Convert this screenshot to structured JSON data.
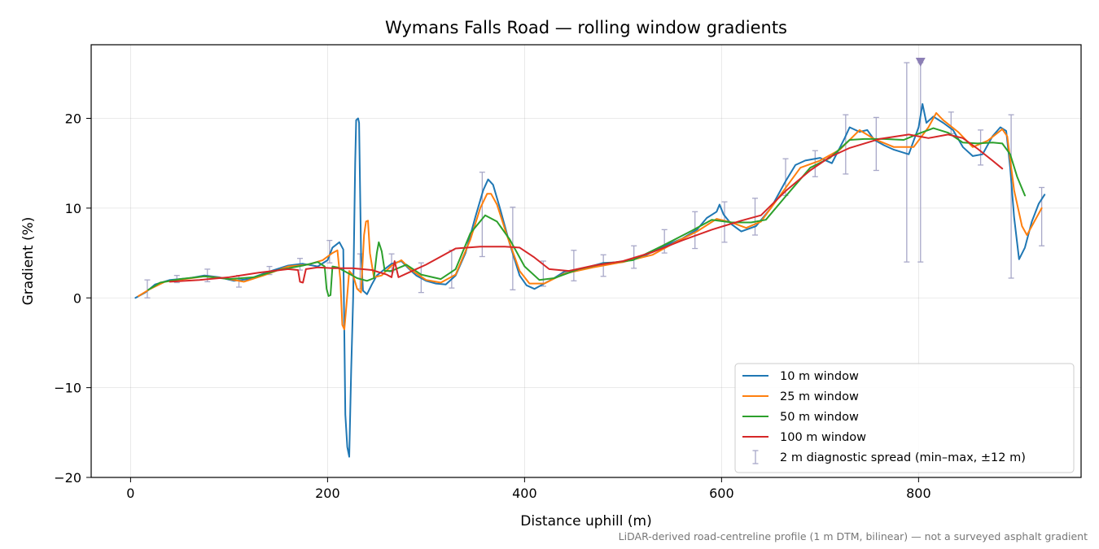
{
  "chart_data": {
    "type": "line",
    "title": "Wymans Falls Road — rolling window gradients",
    "xlabel": "Distance uphill (m)",
    "ylabel": "Gradient (%)",
    "xlim": [
      -40,
      965
    ],
    "ylim": [
      -20,
      28.2
    ],
    "xticks": [
      0,
      200,
      400,
      600,
      800
    ],
    "yticks": [
      -20,
      -10,
      0,
      10,
      20
    ],
    "xtick_labels": [
      "0",
      "200",
      "400",
      "600",
      "800"
    ],
    "ytick_labels": [
      "−20",
      "−10",
      "0",
      "10",
      "20"
    ],
    "grid": true,
    "legend_position": "lower-right",
    "footnote": "LiDAR-derived road-centreline profile (1 m DTM, bilinear) — not a surveyed asphalt gradient",
    "marker": {
      "x": 802,
      "y": 26.3,
      "shape": "triangle-down",
      "color": "#8c7fb5"
    },
    "series": [
      {
        "name": "10 m window",
        "color": "#1f77b4",
        "points": [
          [
            5,
            0
          ],
          [
            15,
            0.6
          ],
          [
            25,
            1.5
          ],
          [
            40,
            2
          ],
          [
            60,
            2.2
          ],
          [
            75,
            2.5
          ],
          [
            90,
            2.3
          ],
          [
            105,
            1.9
          ],
          [
            120,
            2.1
          ],
          [
            140,
            2.9
          ],
          [
            160,
            3.6
          ],
          [
            175,
            3.8
          ],
          [
            190,
            3.5
          ],
          [
            200,
            4.2
          ],
          [
            205,
            5.6
          ],
          [
            212,
            6.2
          ],
          [
            216,
            5.4
          ],
          [
            218,
            -13
          ],
          [
            220,
            -16.6
          ],
          [
            222,
            -17.7
          ],
          [
            224,
            -8
          ],
          [
            226,
            0
          ],
          [
            228,
            15
          ],
          [
            229,
            19.8
          ],
          [
            231,
            20
          ],
          [
            232,
            19.5
          ],
          [
            234,
            5
          ],
          [
            236,
            0.8
          ],
          [
            240,
            0.4
          ],
          [
            245,
            1.5
          ],
          [
            250,
            2.5
          ],
          [
            258,
            3.2
          ],
          [
            265,
            3.8
          ],
          [
            275,
            4.1
          ],
          [
            282,
            3.3
          ],
          [
            290,
            2.5
          ],
          [
            300,
            1.9
          ],
          [
            310,
            1.6
          ],
          [
            320,
            1.5
          ],
          [
            330,
            2.5
          ],
          [
            340,
            5
          ],
          [
            350,
            9
          ],
          [
            358,
            12
          ],
          [
            363,
            13.2
          ],
          [
            368,
            12.6
          ],
          [
            375,
            10
          ],
          [
            385,
            6
          ],
          [
            395,
            2.5
          ],
          [
            402,
            1.4
          ],
          [
            410,
            1
          ],
          [
            420,
            1.6
          ],
          [
            430,
            2.2
          ],
          [
            440,
            2.9
          ],
          [
            460,
            3.3
          ],
          [
            480,
            3.9
          ],
          [
            500,
            4
          ],
          [
            520,
            4.6
          ],
          [
            540,
            5.7
          ],
          [
            560,
            6.6
          ],
          [
            575,
            7.6
          ],
          [
            585,
            8.9
          ],
          [
            595,
            9.6
          ],
          [
            598,
            10.4
          ],
          [
            602,
            9.3
          ],
          [
            610,
            8.2
          ],
          [
            620,
            7.4
          ],
          [
            635,
            8
          ],
          [
            650,
            10
          ],
          [
            665,
            13
          ],
          [
            675,
            14.8
          ],
          [
            685,
            15.3
          ],
          [
            700,
            15.6
          ],
          [
            712,
            15
          ],
          [
            725,
            17.8
          ],
          [
            730,
            19
          ],
          [
            740,
            18.5
          ],
          [
            748,
            18.7
          ],
          [
            755,
            17.6
          ],
          [
            765,
            17
          ],
          [
            775,
            16.5
          ],
          [
            790,
            16
          ],
          [
            795,
            17.5
          ],
          [
            800,
            19
          ],
          [
            804,
            21.6
          ],
          [
            808,
            19.5
          ],
          [
            815,
            20.2
          ],
          [
            825,
            19.5
          ],
          [
            835,
            18.7
          ],
          [
            845,
            16.8
          ],
          [
            855,
            15.8
          ],
          [
            865,
            16
          ],
          [
            875,
            18
          ],
          [
            883,
            19
          ],
          [
            889,
            18.6
          ],
          [
            893,
            14.5
          ],
          [
            897,
            9
          ],
          [
            902,
            4.3
          ],
          [
            908,
            5.6
          ],
          [
            915,
            8.5
          ],
          [
            922,
            10.5
          ],
          [
            928,
            11.5
          ]
        ]
      },
      {
        "name": "25 m window",
        "color": "#ff7f0e",
        "points": [
          [
            8,
            0.2
          ],
          [
            20,
            1
          ],
          [
            35,
            1.8
          ],
          [
            55,
            2.1
          ],
          [
            75,
            2.4
          ],
          [
            95,
            2.2
          ],
          [
            115,
            1.8
          ],
          [
            135,
            2.5
          ],
          [
            160,
            3.5
          ],
          [
            180,
            3.7
          ],
          [
            195,
            4.2
          ],
          [
            205,
            5
          ],
          [
            210,
            5.3
          ],
          [
            213,
            2
          ],
          [
            215,
            -3
          ],
          [
            217,
            -3.5
          ],
          [
            219,
            -1
          ],
          [
            222,
            3
          ],
          [
            226,
            2.5
          ],
          [
            230,
            1
          ],
          [
            234,
            0.6
          ],
          [
            237,
            7
          ],
          [
            239,
            8.5
          ],
          [
            241,
            8.6
          ],
          [
            243,
            5
          ],
          [
            247,
            2.3
          ],
          [
            255,
            2.5
          ],
          [
            265,
            3.6
          ],
          [
            275,
            4.2
          ],
          [
            285,
            3.1
          ],
          [
            300,
            2
          ],
          [
            315,
            1.7
          ],
          [
            330,
            2.6
          ],
          [
            345,
            6.5
          ],
          [
            355,
            10
          ],
          [
            362,
            11.6
          ],
          [
            366,
            11.6
          ],
          [
            372,
            10.4
          ],
          [
            382,
            7
          ],
          [
            395,
            3
          ],
          [
            405,
            1.6
          ],
          [
            420,
            1.6
          ],
          [
            440,
            2.7
          ],
          [
            470,
            3.4
          ],
          [
            500,
            4
          ],
          [
            530,
            4.8
          ],
          [
            555,
            6.3
          ],
          [
            575,
            7.4
          ],
          [
            595,
            8.8
          ],
          [
            610,
            8.4
          ],
          [
            625,
            7.8
          ],
          [
            640,
            8.5
          ],
          [
            660,
            11.5
          ],
          [
            680,
            14.5
          ],
          [
            700,
            15.3
          ],
          [
            720,
            16.5
          ],
          [
            740,
            18.7
          ],
          [
            755,
            17.7
          ],
          [
            775,
            16.8
          ],
          [
            795,
            16.8
          ],
          [
            810,
            19
          ],
          [
            818,
            20.6
          ],
          [
            825,
            19.8
          ],
          [
            840,
            18.5
          ],
          [
            855,
            16.8
          ],
          [
            870,
            17.5
          ],
          [
            885,
            18.8
          ],
          [
            890,
            18
          ],
          [
            897,
            12
          ],
          [
            905,
            8
          ],
          [
            910,
            7
          ],
          [
            915,
            8
          ],
          [
            925,
            10
          ]
        ]
      },
      {
        "name": "50 m window",
        "color": "#2ca02c",
        "points": [
          [
            18,
            0.9
          ],
          [
            30,
            1.7
          ],
          [
            50,
            2.1
          ],
          [
            75,
            2.4
          ],
          [
            100,
            2.1
          ],
          [
            125,
            2.3
          ],
          [
            150,
            3.1
          ],
          [
            175,
            3.6
          ],
          [
            190,
            4
          ],
          [
            197,
            3.5
          ],
          [
            199,
            1
          ],
          [
            201,
            0.2
          ],
          [
            203,
            0.3
          ],
          [
            205,
            3.5
          ],
          [
            210,
            3.4
          ],
          [
            220,
            2.8
          ],
          [
            230,
            2.2
          ],
          [
            240,
            1.9
          ],
          [
            247,
            2.2
          ],
          [
            250,
            5
          ],
          [
            252,
            6.2
          ],
          [
            255,
            5.2
          ],
          [
            258,
            3
          ],
          [
            265,
            3
          ],
          [
            280,
            3.7
          ],
          [
            295,
            2.6
          ],
          [
            315,
            2.1
          ],
          [
            330,
            3.2
          ],
          [
            345,
            7.2
          ],
          [
            360,
            9.2
          ],
          [
            372,
            8.5
          ],
          [
            385,
            6.5
          ],
          [
            400,
            3.5
          ],
          [
            415,
            2
          ],
          [
            430,
            2.2
          ],
          [
            455,
            3.2
          ],
          [
            480,
            3.8
          ],
          [
            510,
            4.2
          ],
          [
            540,
            5.8
          ],
          [
            570,
            7.5
          ],
          [
            590,
            8.7
          ],
          [
            610,
            8.4
          ],
          [
            630,
            8.4
          ],
          [
            645,
            8.7
          ],
          [
            665,
            11.3
          ],
          [
            690,
            14.5
          ],
          [
            710,
            15.6
          ],
          [
            730,
            17.6
          ],
          [
            745,
            17.7
          ],
          [
            765,
            17.7
          ],
          [
            785,
            17.6
          ],
          [
            800,
            18.3
          ],
          [
            815,
            18.9
          ],
          [
            830,
            18.4
          ],
          [
            845,
            17.3
          ],
          [
            860,
            17.2
          ],
          [
            875,
            17.3
          ],
          [
            885,
            17.2
          ],
          [
            893,
            16
          ],
          [
            900,
            13.5
          ],
          [
            908,
            11.4
          ]
        ]
      },
      {
        "name": "100 m window",
        "color": "#d62728",
        "points": [
          [
            40,
            1.8
          ],
          [
            70,
            2
          ],
          [
            100,
            2.3
          ],
          [
            130,
            2.8
          ],
          [
            160,
            3.2
          ],
          [
            170,
            3.1
          ],
          [
            172,
            1.8
          ],
          [
            175,
            1.7
          ],
          [
            178,
            3.2
          ],
          [
            190,
            3.4
          ],
          [
            205,
            3.3
          ],
          [
            225,
            3.3
          ],
          [
            245,
            3.1
          ],
          [
            260,
            2.6
          ],
          [
            265,
            2.3
          ],
          [
            268,
            4.1
          ],
          [
            272,
            2.3
          ],
          [
            282,
            2.8
          ],
          [
            300,
            3.7
          ],
          [
            330,
            5.5
          ],
          [
            355,
            5.7
          ],
          [
            380,
            5.7
          ],
          [
            395,
            5.6
          ],
          [
            410,
            4.5
          ],
          [
            425,
            3.2
          ],
          [
            445,
            3
          ],
          [
            470,
            3.6
          ],
          [
            500,
            4.1
          ],
          [
            530,
            5.1
          ],
          [
            560,
            6.4
          ],
          [
            590,
            7.6
          ],
          [
            620,
            8.6
          ],
          [
            640,
            9.2
          ],
          [
            665,
            11.9
          ],
          [
            690,
            14.2
          ],
          [
            710,
            15.7
          ],
          [
            730,
            16.7
          ],
          [
            760,
            17.7
          ],
          [
            790,
            18.2
          ],
          [
            810,
            17.8
          ],
          [
            830,
            18.2
          ],
          [
            845,
            17.8
          ],
          [
            860,
            16.6
          ],
          [
            875,
            15.3
          ],
          [
            885,
            14.4
          ]
        ]
      },
      {
        "name": "2 m diagnostic spread (min–max, ±12 m)",
        "type": "errorbar",
        "color": "#a8a8c8",
        "bars": [
          [
            17,
            0,
            2
          ],
          [
            47,
            1.7,
            2.5
          ],
          [
            78,
            1.8,
            3.2
          ],
          [
            110,
            1.2,
            2.5
          ],
          [
            141,
            2.6,
            3.5
          ],
          [
            172,
            3.1,
            4.4
          ],
          [
            202,
            3.9,
            6.4
          ],
          [
            233,
            1,
            4.9
          ],
          [
            265,
            2.9,
            4.9
          ],
          [
            295,
            0.6,
            3.9
          ],
          [
            326,
            1.1,
            5.3
          ],
          [
            357,
            4.6,
            14
          ],
          [
            388,
            0.9,
            10.1
          ],
          [
            419,
            1.3,
            4.1
          ],
          [
            450,
            1.9,
            5.3
          ],
          [
            480,
            2.4,
            4.8
          ],
          [
            511,
            3.3,
            5.8
          ],
          [
            542,
            5,
            7.6
          ],
          [
            573,
            5.5,
            9.6
          ],
          [
            603,
            6.2,
            10.7
          ],
          [
            634,
            7,
            11.1
          ],
          [
            665,
            11.4,
            15.5
          ],
          [
            695,
            13.5,
            16.4
          ],
          [
            726,
            13.8,
            20.4
          ],
          [
            757,
            14.2,
            20.1
          ],
          [
            788,
            4,
            26.2
          ],
          [
            802,
            4,
            26.2
          ],
          [
            833,
            18.3,
            20.7
          ],
          [
            863,
            14.8,
            18.7
          ],
          [
            894,
            2.2,
            20.4
          ],
          [
            925,
            5.8,
            12.3
          ]
        ]
      }
    ]
  }
}
